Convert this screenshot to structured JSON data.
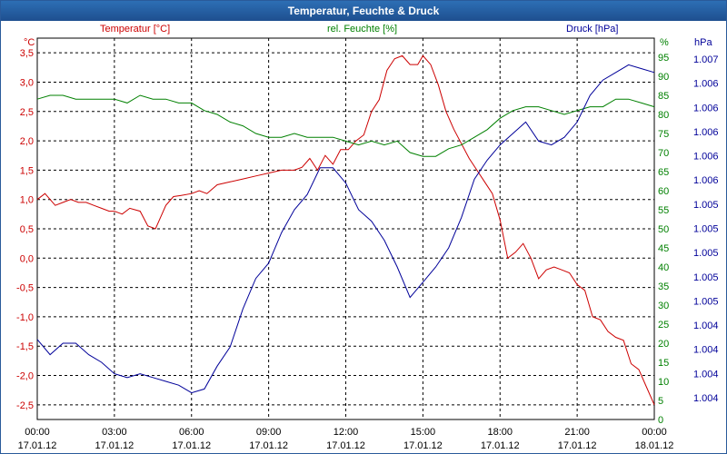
{
  "window": {
    "title": "Temperatur, Feuchte & Druck"
  },
  "chart_data": {
    "type": "line",
    "title": "Temperatur, Feuchte & Druck",
    "x_ticks": [
      {
        "time": "00:00",
        "date": "17.01.12"
      },
      {
        "time": "03:00",
        "date": "17.01.12"
      },
      {
        "time": "06:00",
        "date": "17.01.12"
      },
      {
        "time": "09:00",
        "date": "17.01.12"
      },
      {
        "time": "12:00",
        "date": "17.01.12"
      },
      {
        "time": "15:00",
        "date": "17.01.12"
      },
      {
        "time": "18:00",
        "date": "17.01.12"
      },
      {
        "time": "21:00",
        "date": "17.01.12"
      },
      {
        "time": "00:00",
        "date": "18.01.12"
      }
    ],
    "xlim": [
      0,
      24
    ],
    "axes": {
      "temperature": {
        "label": "Temperatur [°C]",
        "unit": "°C",
        "color": "#cc0000",
        "ylim": [
          -2.75,
          3.75
        ],
        "ticks": [
          "3,5",
          "3,0",
          "2,5",
          "2,0",
          "1,5",
          "1,0",
          "0,5",
          "0,0",
          "-0,5",
          "-1,0",
          "-1,5",
          "-2,0",
          "-2,5"
        ]
      },
      "humidity": {
        "label": "rel. Feuchte [%]",
        "unit": "%",
        "color": "#008000",
        "ylim": [
          0,
          100
        ],
        "ticks": [
          "95",
          "90",
          "85",
          "80",
          "75",
          "70",
          "65",
          "60",
          "55",
          "50",
          "45",
          "40",
          "35",
          "30",
          "25",
          "20",
          "15",
          "10",
          "5",
          "0"
        ]
      },
      "pressure": {
        "label": "Druck [hPa]",
        "unit": "hPa",
        "color": "#000099",
        "ylim": [
          0,
          100
        ],
        "ticks": [
          "1.007",
          "1.006",
          "1.006",
          "1.006",
          "1.006",
          "1.006",
          "1.005",
          "1.005",
          "1.005",
          "1.005",
          "1.005",
          "1.004",
          "1.004",
          "1.004",
          "1.004"
        ]
      }
    },
    "series": [
      {
        "name": "Temperatur [°C]",
        "color": "#cc0000",
        "axis": "temperature",
        "x": [
          0,
          0.3,
          0.7,
          1.0,
          1.3,
          1.6,
          1.9,
          2.2,
          2.5,
          2.8,
          3.0,
          3.3,
          3.6,
          4.0,
          4.3,
          4.6,
          4.8,
          5.0,
          5.3,
          5.6,
          6.0,
          6.3,
          6.6,
          7.0,
          7.5,
          8.0,
          8.5,
          9.0,
          9.5,
          10.0,
          10.3,
          10.6,
          10.9,
          11.2,
          11.5,
          11.8,
          12.1,
          12.4,
          12.7,
          13.0,
          13.3,
          13.6,
          13.9,
          14.2,
          14.5,
          14.8,
          15.0,
          15.3,
          15.6,
          15.9,
          16.2,
          16.5,
          16.8,
          17.1,
          17.4,
          17.7,
          18.0,
          18.3,
          18.6,
          18.9,
          19.2,
          19.5,
          19.8,
          20.1,
          20.4,
          20.7,
          21.0,
          21.3,
          21.6,
          21.9,
          22.2,
          22.5,
          22.8,
          23.1,
          23.4,
          23.7,
          24.0
        ],
        "y": [
          1.0,
          1.1,
          0.9,
          0.95,
          1.0,
          0.95,
          0.95,
          0.9,
          0.85,
          0.8,
          0.8,
          0.75,
          0.85,
          0.8,
          0.55,
          0.5,
          0.7,
          0.9,
          1.05,
          1.07,
          1.1,
          1.15,
          1.1,
          1.25,
          1.3,
          1.35,
          1.4,
          1.45,
          1.5,
          1.5,
          1.55,
          1.7,
          1.5,
          1.75,
          1.6,
          1.85,
          1.85,
          2.0,
          2.1,
          2.5,
          2.7,
          3.2,
          3.4,
          3.45,
          3.3,
          3.3,
          3.45,
          3.3,
          2.95,
          2.5,
          2.2,
          1.95,
          1.7,
          1.5,
          1.3,
          1.1,
          0.65,
          0.0,
          0.1,
          0.25,
          0.0,
          -0.35,
          -0.2,
          -0.15,
          -0.2,
          -0.25,
          -0.45,
          -0.55,
          -1.0,
          -1.05,
          -1.25,
          -1.35,
          -1.4,
          -1.8,
          -1.9,
          -2.2,
          -2.5
        ]
      },
      {
        "name": "rel. Feuchte [%]",
        "color": "#008000",
        "axis": "humidity",
        "x": [
          0,
          0.5,
          1.0,
          1.5,
          2.0,
          2.5,
          3.0,
          3.5,
          4.0,
          4.5,
          5.0,
          5.5,
          6.0,
          6.5,
          7.0,
          7.5,
          8.0,
          8.5,
          9.0,
          9.5,
          10.0,
          10.5,
          11.0,
          11.5,
          12.0,
          12.5,
          13.0,
          13.5,
          14.0,
          14.5,
          15.0,
          15.5,
          16.0,
          16.5,
          17.0,
          17.5,
          18.0,
          18.5,
          19.0,
          19.5,
          20.0,
          20.5,
          21.0,
          21.5,
          22.0,
          22.5,
          23.0,
          23.5,
          24.0
        ],
        "y": [
          84,
          85,
          85,
          84,
          84,
          84,
          84,
          83,
          85,
          84,
          84,
          83,
          83,
          81,
          80,
          78,
          77,
          75,
          74,
          74,
          75,
          74,
          74,
          74,
          73,
          72,
          73,
          72,
          73,
          70,
          69,
          69,
          71,
          72,
          74,
          76,
          79,
          81,
          82,
          82,
          81,
          80,
          81,
          82,
          82,
          84,
          84,
          83,
          82
        ]
      },
      {
        "name": "Druck [hPa]",
        "color": "#000099",
        "axis": "pressure",
        "x": [
          0,
          0.5,
          1.0,
          1.5,
          2.0,
          2.5,
          3.0,
          3.5,
          4.0,
          4.5,
          5.0,
          5.5,
          6.0,
          6.5,
          7.0,
          7.5,
          8.0,
          8.5,
          9.0,
          9.5,
          10.0,
          10.5,
          11.0,
          11.5,
          12.0,
          12.5,
          13.0,
          13.5,
          14.0,
          14.5,
          15.0,
          15.5,
          16.0,
          16.5,
          17.0,
          17.5,
          18.0,
          18.5,
          19.0,
          19.5,
          20.0,
          20.5,
          21.0,
          21.5,
          22.0,
          22.5,
          23.0,
          23.5,
          24.0
        ],
        "y": [
          21,
          17,
          20,
          20,
          17,
          15,
          12,
          11,
          12,
          11,
          10,
          9,
          7,
          8,
          14,
          19,
          29,
          37,
          41,
          49,
          55,
          59,
          66,
          66,
          62,
          55,
          52,
          47,
          40,
          32,
          36,
          40,
          45,
          53,
          63,
          68,
          72,
          75,
          78,
          73,
          72,
          74,
          78,
          85,
          89,
          91,
          93,
          92,
          91
        ]
      }
    ]
  }
}
